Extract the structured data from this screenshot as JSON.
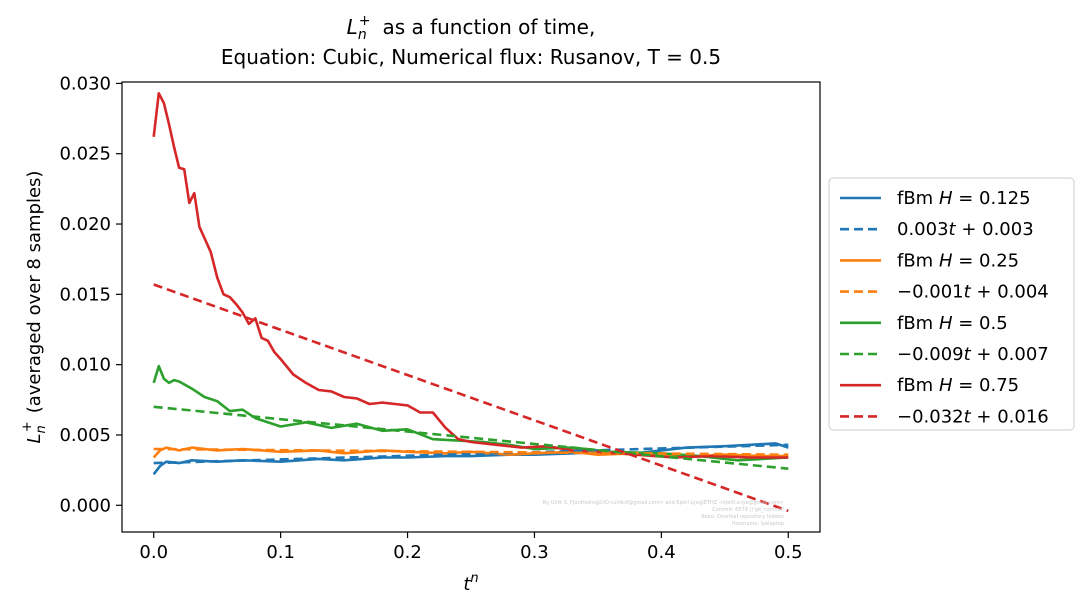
{
  "chart_data": {
    "type": "line",
    "title_line1_main": "L",
    "title_line1_sub": "n",
    "title_line1_sup": "+",
    "title_line1_rest": "as a function of time,",
    "title_line2": "Equation: Cubic, Numerical flux: Rusanov, T = 0.5",
    "xlabel_main": "t",
    "xlabel_sup": "n",
    "ylabel_main": "L",
    "ylabel_sub": "n",
    "ylabel_sup": "+",
    "ylabel_rest": "(averaged over 8 samples)",
    "xlim": [
      -0.025,
      0.525
    ],
    "ylim": [
      -0.0019,
      0.0301
    ],
    "x_ticks": [
      0.0,
      0.1,
      0.2,
      0.3,
      0.4,
      0.5
    ],
    "x_tick_labels": [
      "0.0",
      "0.1",
      "0.2",
      "0.3",
      "0.4",
      "0.5"
    ],
    "y_ticks": [
      0.0,
      0.005,
      0.01,
      0.015,
      0.02,
      0.025,
      0.03
    ],
    "y_tick_labels": [
      "0.000",
      "0.005",
      "0.010",
      "0.015",
      "0.020",
      "0.025",
      "0.030"
    ],
    "legend_position": "outside right",
    "series": [
      {
        "name": "fBm H = 0.125",
        "legend_pre": "fBm ",
        "legend_var": "H",
        "legend_post": " = 0.125",
        "color": "#1f77b4",
        "style": "solid",
        "x": [
          0.0,
          0.005,
          0.01,
          0.02,
          0.03,
          0.05,
          0.07,
          0.1,
          0.13,
          0.15,
          0.18,
          0.2,
          0.23,
          0.25,
          0.28,
          0.3,
          0.33,
          0.35,
          0.38,
          0.4,
          0.42,
          0.45,
          0.47,
          0.49,
          0.5
        ],
        "y": [
          0.0022,
          0.0028,
          0.0031,
          0.003,
          0.0032,
          0.0031,
          0.0032,
          0.0031,
          0.0033,
          0.0032,
          0.0034,
          0.0034,
          0.0035,
          0.0035,
          0.0036,
          0.0036,
          0.0037,
          0.0038,
          0.0037,
          0.0039,
          0.0041,
          0.0042,
          0.0043,
          0.0044,
          0.0041
        ]
      },
      {
        "name": "0.003t + 0.003",
        "legend_pre": "0.003",
        "legend_var": "t",
        "legend_post": " + 0.003",
        "color": "#1f77b4",
        "style": "dashed",
        "x": [
          0.0,
          0.5
        ],
        "y": [
          0.003,
          0.0043
        ]
      },
      {
        "name": "fBm H = 0.25",
        "legend_pre": "fBm ",
        "legend_var": "H",
        "legend_post": " = 0.25",
        "color": "#ff7f0e",
        "style": "solid",
        "x": [
          0.0,
          0.005,
          0.01,
          0.02,
          0.03,
          0.05,
          0.07,
          0.1,
          0.13,
          0.15,
          0.18,
          0.2,
          0.23,
          0.25,
          0.28,
          0.3,
          0.33,
          0.35,
          0.38,
          0.4,
          0.43,
          0.45,
          0.48,
          0.5
        ],
        "y": [
          0.0034,
          0.0039,
          0.0041,
          0.0039,
          0.0041,
          0.0039,
          0.004,
          0.0038,
          0.0039,
          0.0037,
          0.0039,
          0.0038,
          0.0037,
          0.0038,
          0.0036,
          0.0037,
          0.0038,
          0.0036,
          0.0037,
          0.0036,
          0.0035,
          0.0036,
          0.0035,
          0.0035
        ]
      },
      {
        "name": "-0.001t + 0.004",
        "legend_pre": "−0.001",
        "legend_var": "t",
        "legend_post": " + 0.004",
        "color": "#ff7f0e",
        "style": "dashed",
        "x": [
          0.0,
          0.5
        ],
        "y": [
          0.004,
          0.0036
        ]
      },
      {
        "name": "fBm H = 0.5",
        "legend_pre": "fBm ",
        "legend_var": "H",
        "legend_post": " = 0.5",
        "color": "#2ca02c",
        "style": "solid",
        "x": [
          0.0,
          0.004,
          0.008,
          0.012,
          0.016,
          0.02,
          0.03,
          0.04,
          0.05,
          0.06,
          0.07,
          0.08,
          0.1,
          0.12,
          0.14,
          0.16,
          0.18,
          0.2,
          0.22,
          0.24,
          0.26,
          0.28,
          0.3,
          0.33,
          0.36,
          0.4,
          0.43,
          0.46,
          0.5
        ],
        "y": [
          0.0087,
          0.0099,
          0.009,
          0.0087,
          0.0089,
          0.0088,
          0.0083,
          0.0077,
          0.0074,
          0.0067,
          0.0068,
          0.0062,
          0.0056,
          0.0059,
          0.0055,
          0.0058,
          0.0053,
          0.0054,
          0.0047,
          0.0046,
          0.0045,
          0.0043,
          0.004,
          0.0041,
          0.0038,
          0.0037,
          0.0035,
          0.0032,
          0.0034
        ]
      },
      {
        "name": "-0.009t + 0.007",
        "legend_pre": "−0.009",
        "legend_var": "t",
        "legend_post": " + 0.007",
        "color": "#2ca02c",
        "style": "dashed",
        "x": [
          0.0,
          0.5
        ],
        "y": [
          0.007,
          0.0026
        ]
      },
      {
        "name": "fBm H = 0.75",
        "legend_pre": "fBm ",
        "legend_var": "H",
        "legend_post": " = 0.75",
        "color": "#d62728",
        "style": "solid",
        "x": [
          0.0,
          0.004,
          0.008,
          0.012,
          0.016,
          0.02,
          0.024,
          0.028,
          0.032,
          0.036,
          0.04,
          0.045,
          0.05,
          0.055,
          0.06,
          0.065,
          0.07,
          0.075,
          0.08,
          0.085,
          0.09,
          0.095,
          0.1,
          0.11,
          0.12,
          0.13,
          0.14,
          0.15,
          0.16,
          0.17,
          0.18,
          0.19,
          0.2,
          0.21,
          0.22,
          0.23,
          0.24,
          0.25,
          0.27,
          0.29,
          0.31,
          0.33,
          0.35,
          0.38,
          0.41,
          0.44,
          0.47,
          0.5
        ],
        "y": [
          0.0262,
          0.0293,
          0.0286,
          0.0271,
          0.0255,
          0.024,
          0.0239,
          0.0215,
          0.0222,
          0.0198,
          0.019,
          0.018,
          0.0162,
          0.015,
          0.0148,
          0.0143,
          0.0137,
          0.0129,
          0.0133,
          0.0119,
          0.0117,
          0.0109,
          0.0104,
          0.0093,
          0.0087,
          0.0082,
          0.0081,
          0.0077,
          0.0076,
          0.0072,
          0.0073,
          0.0072,
          0.0071,
          0.0066,
          0.0066,
          0.0055,
          0.0047,
          0.0045,
          0.0043,
          0.0041,
          0.0042,
          0.0039,
          0.0038,
          0.0036,
          0.0034,
          0.0035,
          0.0034,
          0.0034
        ]
      },
      {
        "name": "-0.032t + 0.016",
        "legend_pre": "−0.032",
        "legend_var": "t",
        "legend_post": " + 0.016",
        "color": "#d62728",
        "style": "dashed",
        "x": [
          0.0,
          0.5
        ],
        "y": [
          0.0157,
          -0.0004
        ]
      }
    ],
    "watermark": [
      "By Ulrik S. Fjordholm@UiO<ulriksf@gmail.com> and Kjetil Lye@ETHZ <kjetil.o.lye@gmail.com>",
      "Commit: 6579 ()'git_commit'",
      "Repo: Overleaf repository hidden",
      "Hostname: lyelaptop"
    ]
  }
}
